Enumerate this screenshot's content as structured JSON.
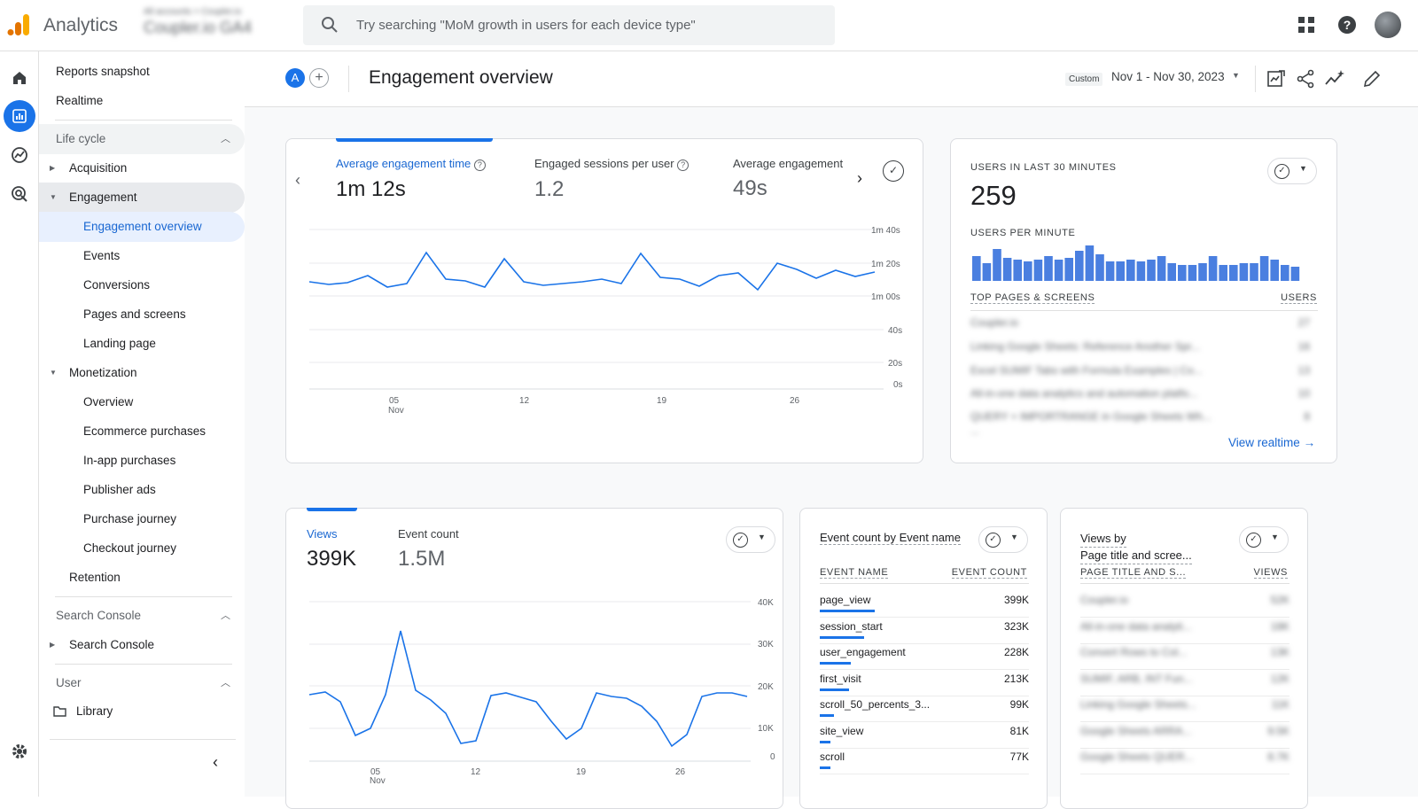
{
  "app": {
    "name": "Analytics",
    "account_small": "All accounts > Coupler.io",
    "account_big": "Coupler.io GA4"
  },
  "search": {
    "placeholder": "Try searching \"MoM growth in users for each device type\""
  },
  "nav": {
    "items": [
      {
        "label": "Reports snapshot"
      },
      {
        "label": "Realtime"
      },
      {
        "label": "Life cycle"
      },
      {
        "label": "Acquisition"
      },
      {
        "label": "Engagement"
      },
      {
        "label": "Engagement overview"
      },
      {
        "label": "Events"
      },
      {
        "label": "Conversions"
      },
      {
        "label": "Pages and screens"
      },
      {
        "label": "Landing page"
      },
      {
        "label": "Monetization"
      },
      {
        "label": "Overview"
      },
      {
        "label": "Ecommerce purchases"
      },
      {
        "label": "In-app purchases"
      },
      {
        "label": "Publisher ads"
      },
      {
        "label": "Purchase journey"
      },
      {
        "label": "Checkout journey"
      },
      {
        "label": "Retention"
      },
      {
        "label": "Search Console"
      },
      {
        "label": "Search Console"
      },
      {
        "label": "User"
      },
      {
        "label": "Library"
      }
    ]
  },
  "header": {
    "avatar_letter": "A",
    "title": "Engagement overview",
    "custom_label": "Custom",
    "date_range": "Nov 1 - Nov 30, 2023"
  },
  "card1": {
    "metrics": [
      {
        "label": "Average engagement time",
        "value": "1m 12s"
      },
      {
        "label": "Engaged sessions per user",
        "value": "1.2"
      },
      {
        "label": "Average engagement",
        "value": "49s"
      }
    ],
    "y_ticks": [
      "1m 40s",
      "1m 20s",
      "1m 00s",
      "40s",
      "20s",
      "0s"
    ],
    "x_ticks": [
      "05",
      "12",
      "19",
      "26"
    ],
    "x_sub": "Nov"
  },
  "realtime": {
    "title": "USERS IN LAST 30 MINUTES",
    "value": "259",
    "per_minute_label": "USERS PER MINUTE",
    "bars": [
      14,
      10,
      18,
      13,
      12,
      11,
      12,
      14,
      12,
      13,
      17,
      20,
      15,
      11,
      11,
      12,
      11,
      12,
      14,
      10,
      9,
      9,
      10,
      14,
      9,
      9,
      10,
      10,
      14,
      12,
      9,
      8
    ],
    "col1": "TOP PAGES & SCREENS",
    "col2": "USERS",
    "rows": [
      {
        "name": "Coupler.io",
        "val": "27"
      },
      {
        "name": "Linking Google Sheets: Reference Another Spr...",
        "val": "16"
      },
      {
        "name": "Excel SUMIF Tabs with Formula Examples | Co...",
        "val": "13"
      },
      {
        "name": "All-in-one data analytics and automation platfo...",
        "val": "10"
      },
      {
        "name": "QUERY + IMPORTRANGE in Google Sheets Wh...",
        "val": "8"
      }
    ],
    "more": "...",
    "link": "View realtime"
  },
  "card2": {
    "metrics": [
      {
        "label": "Views",
        "value": "399K"
      },
      {
        "label": "Event count",
        "value": "1.5M"
      }
    ],
    "y_ticks": [
      "40K",
      "30K",
      "20K",
      "10K",
      "0"
    ],
    "x_ticks": [
      "05",
      "12",
      "19",
      "26"
    ],
    "x_sub": "Nov"
  },
  "events_card": {
    "title": "Event count by Event name",
    "col1": "EVENT NAME",
    "col2": "EVENT COUNT",
    "rows": [
      {
        "name": "page_view",
        "val": "399K",
        "bar": 1.0
      },
      {
        "name": "session_start",
        "val": "323K",
        "bar": 0.81
      },
      {
        "name": "user_engagement",
        "val": "228K",
        "bar": 0.57
      },
      {
        "name": "first_visit",
        "val": "213K",
        "bar": 0.53
      },
      {
        "name": "scroll_50_percents_3...",
        "val": "99K",
        "bar": 0.25
      },
      {
        "name": "site_view",
        "val": "81K",
        "bar": 0.2
      },
      {
        "name": "scroll",
        "val": "77K",
        "bar": 0.19
      }
    ]
  },
  "views_card": {
    "title_line1": "Views by",
    "title_line2": "Page title and scree...",
    "col1": "PAGE TITLE AND S...",
    "col2": "VIEWS",
    "rows": [
      {
        "name": "Coupler.io",
        "val": "52K"
      },
      {
        "name": "All-in-one data analyti...",
        "val": "18K"
      },
      {
        "name": "Convert Rows to Col...",
        "val": "13K"
      },
      {
        "name": "SUMIF, ARB, INT Fun...",
        "val": "12K"
      },
      {
        "name": "Linking Google Sheets...",
        "val": "11K"
      },
      {
        "name": "Google Sheets ARRA...",
        "val": "9.5K"
      },
      {
        "name": "Google Sheets QUER...",
        "val": "8.7K"
      }
    ]
  }
}
